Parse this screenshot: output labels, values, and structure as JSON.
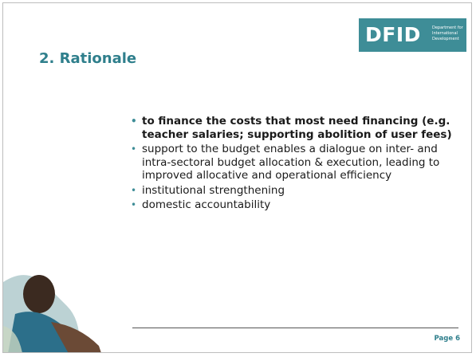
{
  "header": {
    "title": "2. Rationale"
  },
  "logo": {
    "text": "DFID",
    "subtitle_lines": [
      "Department for",
      "International",
      "Development"
    ]
  },
  "bullets": [
    "to finance the costs that most need financing (e.g. teacher salaries; supporting abolition of user fees)",
    "support to the budget enables a dialogue on inter- and intra-sectoral budget allocation & execution, leading to improved allocative and operational efficiency",
    "institutional strengthening",
    "domestic accountability"
  ],
  "footer": {
    "page": "Page 6"
  }
}
